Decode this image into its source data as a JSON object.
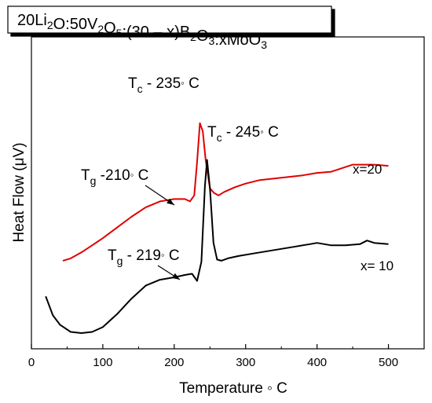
{
  "chart_data": {
    "type": "line",
    "title": "20Li2O:50V2O5:(30 – x)B2O3:xMoO3",
    "xlabel": "Temperature ◦ C",
    "ylabel": "Heat Flow (μV)",
    "xlim": [
      0,
      550
    ],
    "ylim": [
      0,
      100
    ],
    "x_ticks": [
      "0",
      "100",
      "200",
      "300",
      "400",
      "500"
    ],
    "y_ticks_shown": false,
    "grid": false,
    "legend": "none",
    "series": [
      {
        "label": "x=20",
        "color": "#e00000",
        "x": [
          44,
          55,
          70,
          85,
          100,
          120,
          140,
          160,
          180,
          200,
          215,
          222,
          228,
          232,
          236,
          240,
          244,
          250,
          256,
          262,
          270,
          285,
          300,
          320,
          350,
          380,
          400,
          420,
          440,
          450,
          460,
          480,
          500
        ],
        "y": [
          30.5,
          31.5,
          34,
          37,
          40,
          44.5,
          49,
          53,
          55.5,
          56.5,
          56.5,
          55.5,
          58,
          72,
          88.5,
          85,
          73,
          61,
          59,
          58,
          59.5,
          61.5,
          63,
          64.5,
          65.5,
          66.5,
          67.5,
          68,
          70,
          71,
          71,
          71,
          70.5
        ]
      },
      {
        "label": "x= 10",
        "color": "#000000",
        "x": [
          20,
          30,
          40,
          55,
          70,
          85,
          100,
          120,
          140,
          160,
          180,
          200,
          215,
          225,
          232,
          238,
          243,
          246,
          250,
          255,
          260,
          266,
          275,
          290,
          310,
          330,
          350,
          370,
          390,
          400,
          420,
          440,
          460,
          470,
          480,
          500
        ],
        "y": [
          15.5,
          7.5,
          3.5,
          0.5,
          0,
          0.5,
          2.5,
          8,
          14.5,
          20,
          22.5,
          23.5,
          24.5,
          25,
          22,
          30,
          62,
          73,
          61,
          38,
          31,
          30.5,
          31.5,
          32.5,
          33.5,
          34.5,
          35.5,
          36.5,
          37.5,
          38,
          37,
          37,
          37.5,
          39,
          38,
          37.5
        ]
      }
    ],
    "annotations": [
      {
        "text_main": "T",
        "text_sub": "c",
        "text_rest": " - 235",
        "degree": "◦",
        "unit": " C",
        "x": 235,
        "y": 88.5
      },
      {
        "text_main": "T",
        "text_sub": "c",
        "text_rest": " - 245",
        "degree": "◦",
        "unit": " C",
        "x": 245,
        "y": 73
      },
      {
        "text_main": "T",
        "text_sub": "g",
        "text_rest": " -210",
        "degree": "◦",
        "unit": " C",
        "x": 210,
        "y": 56.5
      },
      {
        "text_main": "T",
        "text_sub": "g",
        "text_rest": " - 219",
        "degree": "◦",
        "unit": " C",
        "x": 219,
        "y": 24.5
      }
    ]
  }
}
